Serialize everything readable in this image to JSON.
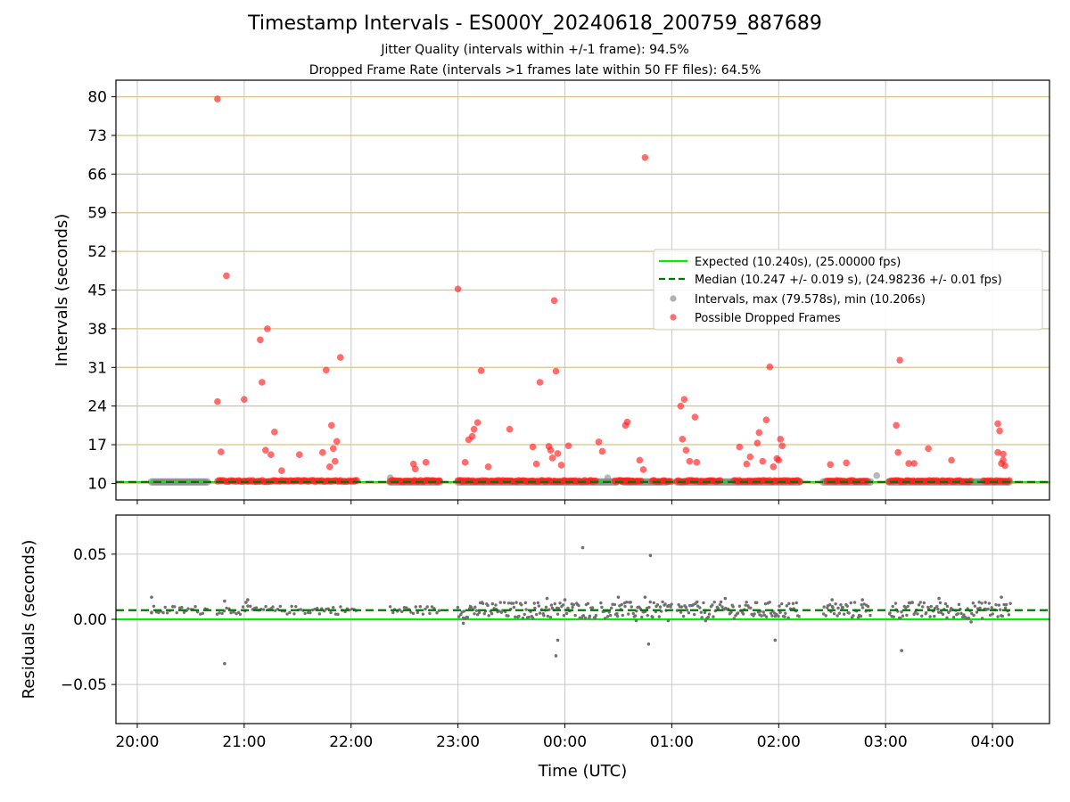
{
  "chart_data": [
    {
      "type": "scatter",
      "title": "Timestamp Intervals - ES000Y_20240618_200759_887689",
      "subtitle_lines": [
        "Jitter Quality (intervals within +/-1 frame): 94.5%",
        "Dropped Frame Rate (intervals >1 frames late within 50 FF files): 64.5%"
      ],
      "xlabel": "",
      "ylabel": "Intervals (seconds)",
      "xlim": [
        "2024-06-18 19:48",
        "2024-06-19 04:32"
      ],
      "ylim": [
        7,
        83
      ],
      "y_ticks": [
        "10",
        "17",
        "24",
        "31",
        "38",
        "45",
        "52",
        "59",
        "66",
        "73",
        "80"
      ],
      "grid": true,
      "legend_position": "center-right",
      "series": [
        {
          "name": "Expected (10.240s), (25.00000 fps)",
          "kind": "hline",
          "y": 10.24,
          "color": "#00ee00"
        },
        {
          "name": "Median (10.247 +/- 0.019 s), (24.98236 +/- 0.01 fps)",
          "kind": "hline",
          "y": 10.247,
          "color": "#007700",
          "dashed": true
        },
        {
          "name": "Intervals, max (79.578s), min (10.206s)",
          "kind": "points",
          "color": "#888888",
          "baseline_segments": [
            [
              "20:08",
              "20:40"
            ],
            [
              "22:22",
              "22:50"
            ],
            [
              "23:00",
              "00:30"
            ],
            [
              "00:33",
              "00:58"
            ],
            [
              "01:03",
              "02:12"
            ],
            [
              "02:25",
              "02:52"
            ],
            [
              "03:02",
              "04:10"
            ]
          ],
          "points": [
            [
              "22:22",
              11.0
            ],
            [
              "00:24",
              11.0
            ],
            [
              "02:55",
              11.4
            ]
          ]
        },
        {
          "name": "Possible Dropped Frames",
          "kind": "points",
          "color": "#ff3333",
          "baseline_segments": [
            [
              "20:45",
              "22:04"
            ],
            [
              "22:22",
              "22:50"
            ],
            [
              "23:00",
              "00:18"
            ],
            [
              "00:28",
              "00:38"
            ],
            [
              "00:31",
              "00:43"
            ],
            [
              "00:49",
              "01:00"
            ],
            [
              "01:03",
              "01:28"
            ],
            [
              "01:35",
              "02:12"
            ],
            [
              "02:27",
              "02:50"
            ],
            [
              "03:02",
              "03:48"
            ],
            [
              "03:55",
              "04:10"
            ]
          ],
          "points": [
            [
              "20:45",
              79.6
            ],
            [
              "20:50",
              47.6
            ],
            [
              "20:45",
              24.8
            ],
            [
              "20:47",
              15.7
            ],
            [
              "21:00",
              25.2
            ],
            [
              "21:09",
              36.0
            ],
            [
              "21:13",
              38.0
            ],
            [
              "21:10",
              28.3
            ],
            [
              "21:17",
              19.3
            ],
            [
              "21:12",
              16.0
            ],
            [
              "21:15",
              15.2
            ],
            [
              "21:21",
              12.3
            ],
            [
              "21:31",
              15.2
            ],
            [
              "21:46",
              30.5
            ],
            [
              "21:54",
              32.8
            ],
            [
              "21:49",
              20.5
            ],
            [
              "21:52",
              17.6
            ],
            [
              "21:50",
              16.3
            ],
            [
              "21:44",
              15.6
            ],
            [
              "21:48",
              13.0
            ],
            [
              "21:51",
              14.0
            ],
            [
              "22:35",
              13.5
            ],
            [
              "22:42",
              13.8
            ],
            [
              "22:36",
              12.6
            ],
            [
              "23:00",
              45.2
            ],
            [
              "23:13",
              30.4
            ],
            [
              "23:06",
              17.9
            ],
            [
              "23:09",
              19.8
            ],
            [
              "23:11",
              21.0
            ],
            [
              "23:08",
              18.5
            ],
            [
              "23:04",
              13.8
            ],
            [
              "23:17",
              13.0
            ],
            [
              "23:29",
              19.8
            ],
            [
              "23:42",
              16.6
            ],
            [
              "23:46",
              28.3
            ],
            [
              "23:44",
              13.5
            ],
            [
              "23:51",
              16.7
            ],
            [
              "23:53",
              14.6
            ],
            [
              "23:52",
              16.0
            ],
            [
              "23:55",
              30.3
            ],
            [
              "23:54",
              43.1
            ],
            [
              "23:56",
              15.4
            ],
            [
              "23:58",
              13.3
            ],
            [
              "00:02",
              16.8
            ],
            [
              "00:19",
              17.5
            ],
            [
              "00:21",
              15.8
            ],
            [
              "00:34",
              20.5
            ],
            [
              "00:35",
              21.1
            ],
            [
              "00:45",
              69.0
            ],
            [
              "00:42",
              14.2
            ],
            [
              "00:44",
              12.5
            ],
            [
              "01:05",
              24.0
            ],
            [
              "01:07",
              25.2
            ],
            [
              "01:06",
              18.0
            ],
            [
              "01:13",
              22.0
            ],
            [
              "01:08",
              16.0
            ],
            [
              "01:10",
              14.0
            ],
            [
              "01:14",
              13.8
            ],
            [
              "01:38",
              16.6
            ],
            [
              "01:42",
              13.5
            ],
            [
              "01:44",
              14.8
            ],
            [
              "01:48",
              17.3
            ],
            [
              "01:49",
              19.2
            ],
            [
              "01:51",
              14.0
            ],
            [
              "01:53",
              21.5
            ],
            [
              "01:55",
              31.1
            ],
            [
              "01:57",
              13.0
            ],
            [
              "01:59",
              14.5
            ],
            [
              "02:01",
              18.0
            ],
            [
              "02:02",
              16.8
            ],
            [
              "02:00",
              14.2
            ],
            [
              "02:29",
              13.4
            ],
            [
              "02:38",
              13.7
            ],
            [
              "03:06",
              20.5
            ],
            [
              "03:08",
              32.3
            ],
            [
              "03:07",
              15.6
            ],
            [
              "03:13",
              13.6
            ],
            [
              "03:16",
              13.6
            ],
            [
              "03:24",
              16.3
            ],
            [
              "03:37",
              14.2
            ],
            [
              "04:03",
              20.8
            ],
            [
              "04:04",
              19.5
            ],
            [
              "04:06",
              15.3
            ],
            [
              "04:03",
              15.6
            ],
            [
              "04:05",
              13.6
            ],
            [
              "04:07",
              13.2
            ],
            [
              "04:06",
              14.2
            ]
          ]
        }
      ]
    },
    {
      "type": "scatter",
      "xlabel": "Time (UTC)",
      "ylabel": "Residuals (seconds)",
      "xlim": [
        "2024-06-18 19:48",
        "2024-06-19 04:32"
      ],
      "ylim": [
        -0.08,
        0.08
      ],
      "y_ticks": [
        "0.05",
        "0.00",
        "−0.05"
      ],
      "x_ticks": [
        "20:00",
        "21:00",
        "22:00",
        "23:00",
        "00:00",
        "01:00",
        "02:00",
        "03:00",
        "04:00"
      ],
      "grid": true,
      "series": [
        {
          "kind": "hline",
          "y": 0.0,
          "color": "#00ee00"
        },
        {
          "kind": "hline",
          "y": 0.007,
          "color": "#007700",
          "dashed": true
        },
        {
          "kind": "points",
          "color": "#707070",
          "band": {
            "center": 0.007,
            "spread": 0.004
          },
          "band_segments": [
            [
              "20:08",
              "20:40"
            ],
            [
              "20:45",
              "22:04"
            ],
            [
              "22:22",
              "22:50"
            ],
            [
              "23:00",
              "00:18"
            ],
            [
              "00:20",
              "01:00"
            ],
            [
              "01:03",
              "02:12"
            ],
            [
              "02:25",
              "02:52"
            ],
            [
              "03:02",
              "04:10"
            ]
          ],
          "points": [
            [
              "20:08",
              0.017
            ],
            [
              "20:08",
              0.005
            ],
            [
              "20:49",
              -0.034
            ],
            [
              "20:49",
              0.014
            ],
            [
              "21:02",
              0.015
            ],
            [
              "21:01",
              0.013
            ],
            [
              "23:03",
              -0.003
            ],
            [
              "23:55",
              -0.028
            ],
            [
              "23:56",
              -0.016
            ],
            [
              "00:10",
              0.055
            ],
            [
              "00:48",
              0.049
            ],
            [
              "00:47",
              -0.019
            ],
            [
              "00:40",
              -0.001
            ],
            [
              "01:58",
              -0.016
            ],
            [
              "03:09",
              -0.024
            ],
            [
              "00:00",
              0.015
            ],
            [
              "00:30",
              0.017
            ],
            [
              "01:30",
              0.016
            ],
            [
              "02:30",
              0.015
            ],
            [
              "03:30",
              0.016
            ],
            [
              "04:05",
              0.017
            ],
            [
              "00:58",
              -0.001
            ],
            [
              "01:19",
              -0.001
            ],
            [
              "03:48",
              -0.002
            ],
            [
              "23:50",
              0.016
            ],
            [
              "00:45",
              0.017
            ],
            [
              "02:47",
              0.015
            ],
            [
              "03:56",
              0.013
            ]
          ]
        }
      ]
    }
  ]
}
